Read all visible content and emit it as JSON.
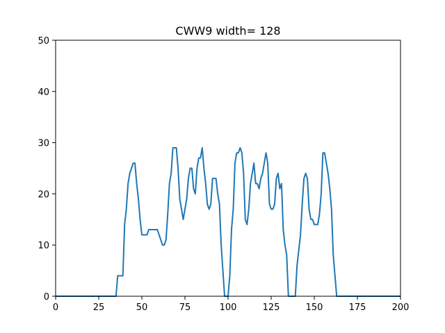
{
  "chart_data": {
    "type": "line",
    "title": "CWW9 width= 128",
    "xlabel": "",
    "ylabel": "",
    "xlim": [
      0,
      200
    ],
    "ylim": [
      0,
      50
    ],
    "xticks": [
      "0",
      "25",
      "50",
      "75",
      "100",
      "125",
      "150",
      "175",
      "200"
    ],
    "yticks": [
      "0",
      "10",
      "20",
      "30",
      "40",
      "50"
    ],
    "grid": false,
    "line_color": "#1f77b4",
    "series": [
      {
        "x": [
          0,
          35,
          36,
          37,
          38,
          39,
          40,
          41,
          42,
          43,
          44,
          45,
          46,
          47,
          48,
          49,
          50,
          51,
          52,
          53,
          54,
          55,
          56,
          57,
          58,
          59,
          60,
          61,
          62,
          63,
          64,
          65,
          66,
          67,
          68,
          69,
          70,
          71,
          72,
          73,
          74,
          75,
          76,
          77,
          78,
          79,
          80,
          81,
          82,
          83,
          84,
          85,
          86,
          87,
          88,
          89,
          90,
          91,
          92,
          93,
          94,
          95,
          96,
          97,
          98,
          99,
          100,
          101,
          102,
          103,
          104,
          105,
          106,
          107,
          108,
          109,
          110,
          111,
          112,
          113,
          114,
          115,
          116,
          117,
          118,
          119,
          120,
          121,
          122,
          123,
          124,
          125,
          126,
          127,
          128,
          129,
          130,
          131,
          132,
          133,
          134,
          135,
          136,
          137,
          138,
          139,
          140,
          141,
          142,
          143,
          144,
          145,
          146,
          147,
          148,
          149,
          150,
          151,
          152,
          153,
          154,
          155,
          156,
          157,
          158,
          159,
          160,
          161,
          162,
          163,
          200
        ],
        "y": [
          0,
          0,
          4,
          4,
          4,
          4,
          14,
          17,
          22,
          24,
          25,
          26,
          26,
          22,
          19,
          15,
          12,
          12,
          12,
          12,
          13,
          13,
          13,
          13,
          13,
          13,
          12,
          11,
          10,
          10,
          11,
          16,
          22,
          24,
          29,
          29,
          29,
          25,
          19,
          17,
          15,
          17,
          19,
          23,
          25,
          25,
          21,
          20,
          25,
          27,
          27,
          29,
          25,
          22,
          18,
          17,
          18,
          23,
          23,
          23,
          20,
          18,
          10,
          5,
          0,
          0,
          0,
          4,
          13,
          17,
          26,
          28,
          28,
          29,
          28,
          24,
          15,
          14,
          17,
          22,
          24,
          26,
          22,
          22,
          21,
          23,
          24,
          26,
          28,
          26,
          18,
          17,
          17,
          18,
          23,
          24,
          21,
          22,
          13,
          10,
          8,
          0,
          0,
          0,
          0,
          0,
          6,
          9,
          12,
          18,
          23,
          24,
          23,
          17,
          15,
          15,
          14,
          14,
          14,
          16,
          20,
          28,
          28,
          26,
          24,
          21,
          17,
          8,
          4,
          0,
          0
        ]
      }
    ]
  }
}
